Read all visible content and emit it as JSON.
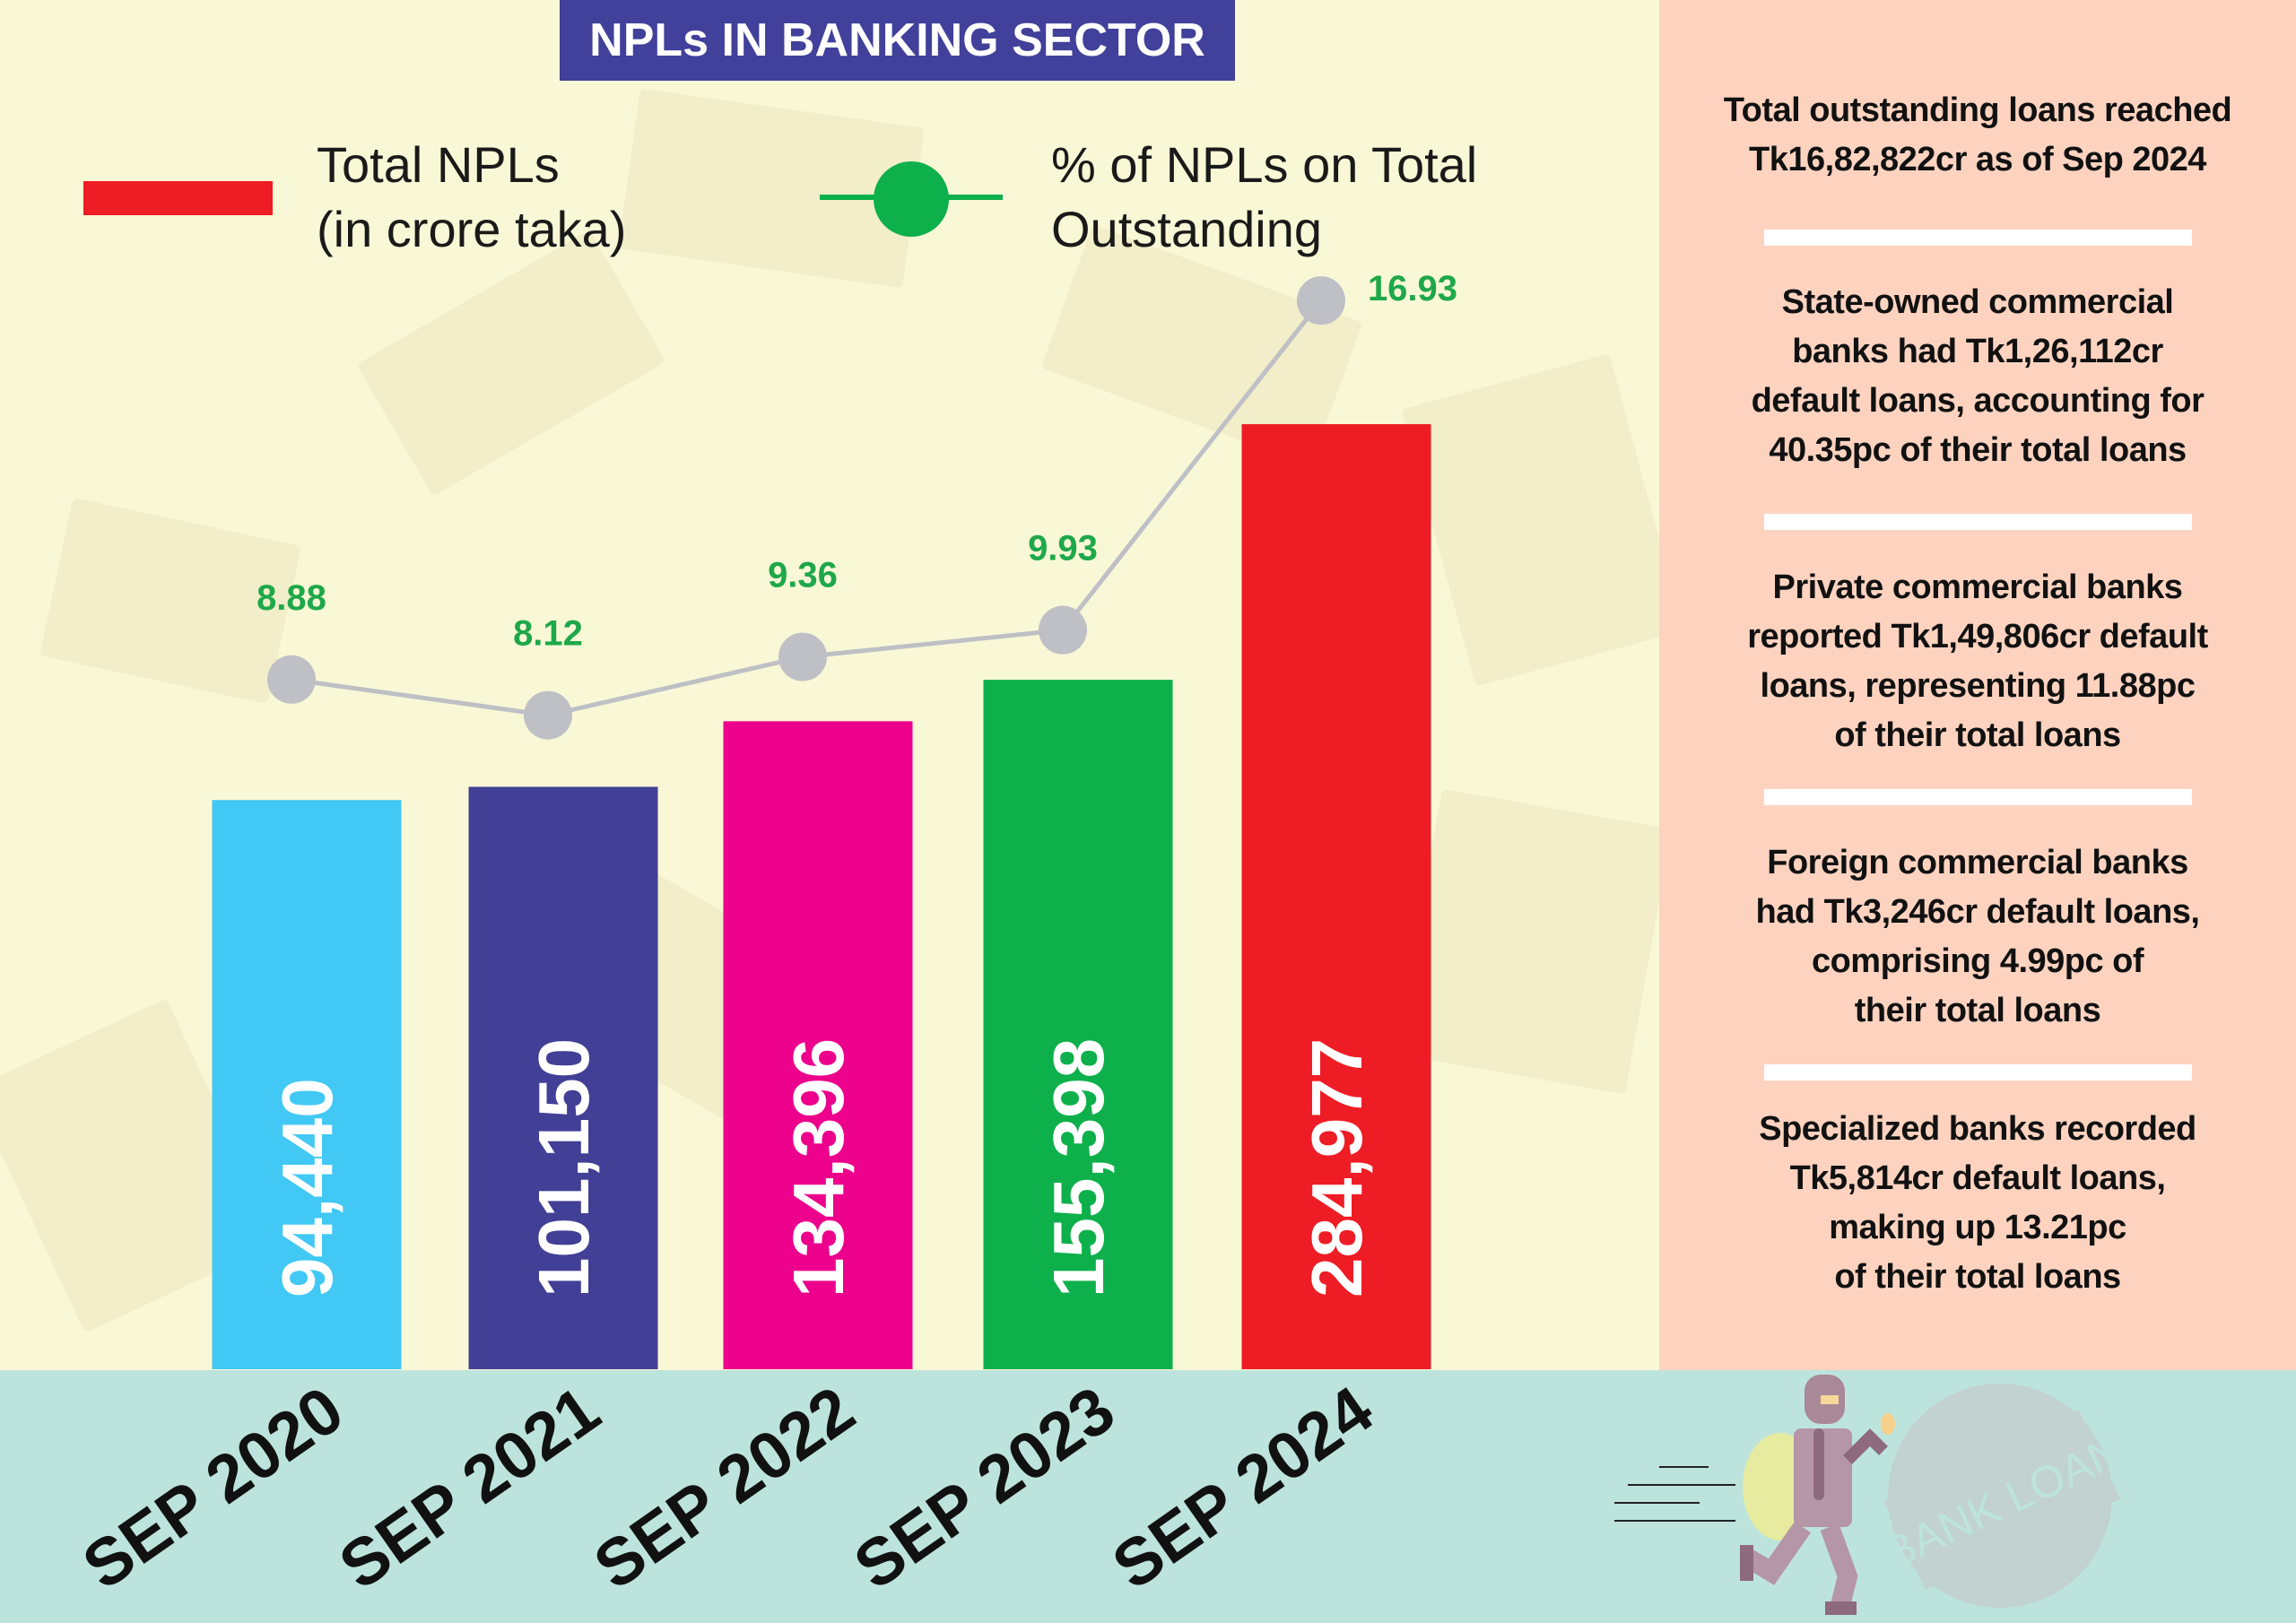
{
  "title": "NPLs IN BANKING SECTOR",
  "legend": {
    "bars": {
      "line1": "Total NPLs",
      "line2": "(in crore taka)",
      "color": "#ee1c25"
    },
    "line": {
      "line1": "% of NPLs on Total",
      "line2": "Outstanding",
      "color": "#0db04b"
    }
  },
  "chart_data": {
    "type": "bar",
    "title": "NPLs IN BANKING SECTOR",
    "categories": [
      "SEP 2020",
      "SEP 2021",
      "SEP 2022",
      "SEP 2023",
      "SEP 2024"
    ],
    "series": [
      {
        "name": "Total NPLs (in crore taka)",
        "type": "bar",
        "values": [
          94440,
          101150,
          134396,
          155398,
          284977
        ],
        "labels": [
          "94,440",
          "101,150",
          "134,396",
          "155,398",
          "284,977"
        ],
        "colors": [
          "#41c8f4",
          "#423f96",
          "#ec008c",
          "#0db04b",
          "#ee1c25"
        ]
      },
      {
        "name": "% of NPLs on Total Outstanding",
        "type": "line",
        "values": [
          8.88,
          8.12,
          9.36,
          9.93,
          16.93
        ],
        "labels": [
          "8.88",
          "8.12",
          "9.36",
          "9.93",
          "16.93"
        ],
        "color": "#bfbfc6",
        "label_color": "#1ea84a"
      }
    ],
    "xlabel": "",
    "ylabel": "",
    "grid": false,
    "legend": "top-left"
  },
  "notes": [
    [
      "Total outstanding loans reached",
      "Tk16,82,822cr as of Sep 2024"
    ],
    [
      "State-owned commercial",
      "banks had Tk1,26,112cr",
      "default loans, accounting for",
      "40.35pc of their total loans"
    ],
    [
      "Private commercial banks",
      "reported Tk1,49,806cr default",
      "loans, representing 11.88pc",
      "of their total loans"
    ],
    [
      "Foreign commercial banks",
      "had Tk3,246cr default loans,",
      "comprising 4.99pc of",
      "their total loans"
    ],
    [
      "Specialized banks recorded",
      "Tk5,814cr default loans,",
      "making up 13.21pc",
      "of their total loans"
    ]
  ],
  "illustration": {
    "stamp_text": "BANK LOAN"
  }
}
